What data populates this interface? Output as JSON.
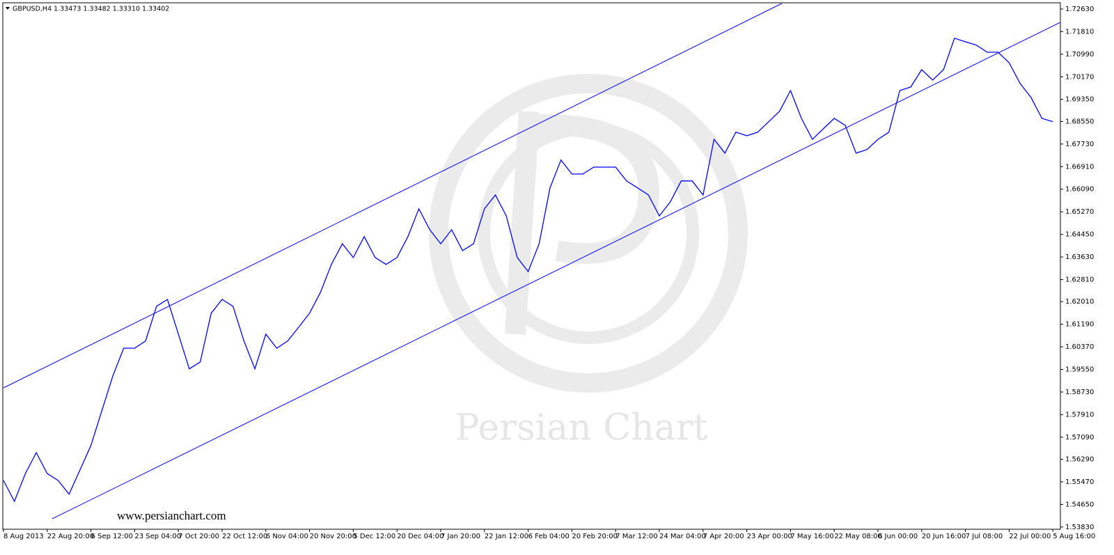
{
  "chart_data": {
    "type": "line",
    "title": "GBPUSD,H4  1.33473 1.33482 1.33310 1.33402",
    "annotations": [
      "Persian Chart",
      "www.persianchart.com"
    ],
    "categories": [
      "8 Aug 2013",
      null,
      null,
      null,
      "22 Aug 20:00",
      null,
      null,
      null,
      "6 Sep 12:00",
      null,
      null,
      null,
      "23 Sep 04:00",
      null,
      null,
      null,
      "7 Oct 20:00",
      null,
      null,
      null,
      "22 Oct 12:00",
      null,
      null,
      null,
      "6 Nov 04:00",
      null,
      null,
      null,
      "20 Nov 20:00",
      null,
      null,
      null,
      "5 Dec 12:00",
      null,
      null,
      null,
      "20 Dec 04:00",
      null,
      null,
      null,
      "7 Jan 20:00",
      null,
      null,
      null,
      "22 Jan 12:00",
      null,
      null,
      null,
      "6 Feb 04:00",
      null,
      null,
      null,
      "20 Feb 20:00",
      null,
      null,
      null,
      "7 Mar 12:00",
      null,
      null,
      null,
      "24 Mar 04:00",
      null,
      null,
      null,
      "7 Apr 20:00",
      null,
      null,
      null,
      "23 Apr 00:00",
      null,
      null,
      null,
      "7 May 16:00",
      null,
      null,
      null,
      "22 May 08:00",
      null,
      null,
      null,
      "6 Jun 00:00",
      null,
      null,
      null,
      "20 Jun 16:00",
      null,
      null,
      null,
      "7 Jul 08:00",
      null,
      null,
      null,
      "22 Jul 00:00",
      null,
      null,
      null,
      "5 Aug 16:00"
    ],
    "series": [
      {
        "name": "GBPUSD,H4",
        "color": "#0000ff",
        "values": [
          1.5552,
          1.5476,
          1.5577,
          1.5653,
          1.5577,
          1.5552,
          1.5502,
          1.559,
          1.5679,
          1.5805,
          1.5931,
          1.6032,
          1.6032,
          1.6058,
          1.6184,
          1.6209,
          1.6083,
          1.5957,
          1.5982,
          1.6159,
          1.6209,
          1.6184,
          1.6058,
          1.5957,
          1.6083,
          1.6032,
          1.6058,
          1.6108,
          1.6159,
          1.6235,
          1.6336,
          1.6411,
          1.6361,
          1.6437,
          1.6361,
          1.6336,
          1.6361,
          1.6437,
          1.6538,
          1.6462,
          1.6411,
          1.6462,
          1.6386,
          1.6411,
          1.6538,
          1.6588,
          1.6512,
          1.6361,
          1.631,
          1.6411,
          1.6614,
          1.6715,
          1.6664,
          1.6664,
          1.6689,
          1.6689,
          1.6689,
          1.6639,
          1.6614,
          1.6588,
          1.6512,
          1.6563,
          1.6639,
          1.6639,
          1.6588,
          1.679,
          1.674,
          1.6816,
          1.6803,
          1.6816,
          1.6854,
          1.6892,
          1.6967,
          1.6866,
          1.679,
          1.6828,
          1.6866,
          1.6841,
          1.674,
          1.6753,
          1.679,
          1.6816,
          1.6967,
          1.698,
          1.7043,
          1.7005,
          1.7043,
          1.7157,
          1.7144,
          1.7132,
          1.7106,
          1.7106,
          1.7068,
          1.6993,
          1.6942,
          1.6866,
          1.6854
        ]
      }
    ],
    "trendlines": [
      {
        "color": "#0000ff",
        "from": [
          0,
          1.5888
        ],
        "to": [
          71.2,
          1.7283
        ]
      },
      {
        "color": "#0000ff",
        "from": [
          4.46,
          1.5413
        ],
        "to": [
          96.7,
          1.7215
        ]
      }
    ],
    "ylim": [
      1.5375,
      1.7283
    ],
    "yticks": [
      {
        "value": 1.7263,
        "label": "1.72630"
      },
      {
        "value": 1.7181,
        "label": "1.71810"
      },
      {
        "value": 1.7099,
        "label": "1.70990"
      },
      {
        "value": 1.7017,
        "label": "1.70170"
      },
      {
        "value": 1.6935,
        "label": "1.69350"
      },
      {
        "value": 1.6855,
        "label": "1.68550"
      },
      {
        "value": 1.6773,
        "label": "1.67730"
      },
      {
        "value": 1.6691,
        "label": "1.66910"
      },
      {
        "value": 1.6609,
        "label": "1.66090"
      },
      {
        "value": 1.6527,
        "label": "1.65270"
      },
      {
        "value": 1.6445,
        "label": "1.64450"
      },
      {
        "value": 1.6363,
        "label": "1.63630"
      },
      {
        "value": 1.6281,
        "label": "1.62810"
      },
      {
        "value": 1.6201,
        "label": "1.62010"
      },
      {
        "value": 1.6119,
        "label": "1.61190"
      },
      {
        "value": 1.6037,
        "label": "1.60370"
      },
      {
        "value": 1.5955,
        "label": "1.59550"
      },
      {
        "value": 1.5873,
        "label": "1.58730"
      },
      {
        "value": 1.5791,
        "label": "1.57910"
      },
      {
        "value": 1.5709,
        "label": "1.57090"
      },
      {
        "value": 1.5629,
        "label": "1.56290"
      },
      {
        "value": 1.5547,
        "label": "1.55470"
      },
      {
        "value": 1.5465,
        "label": "1.54650"
      },
      {
        "value": 1.5383,
        "label": "1.53830"
      }
    ],
    "grid": false
  }
}
